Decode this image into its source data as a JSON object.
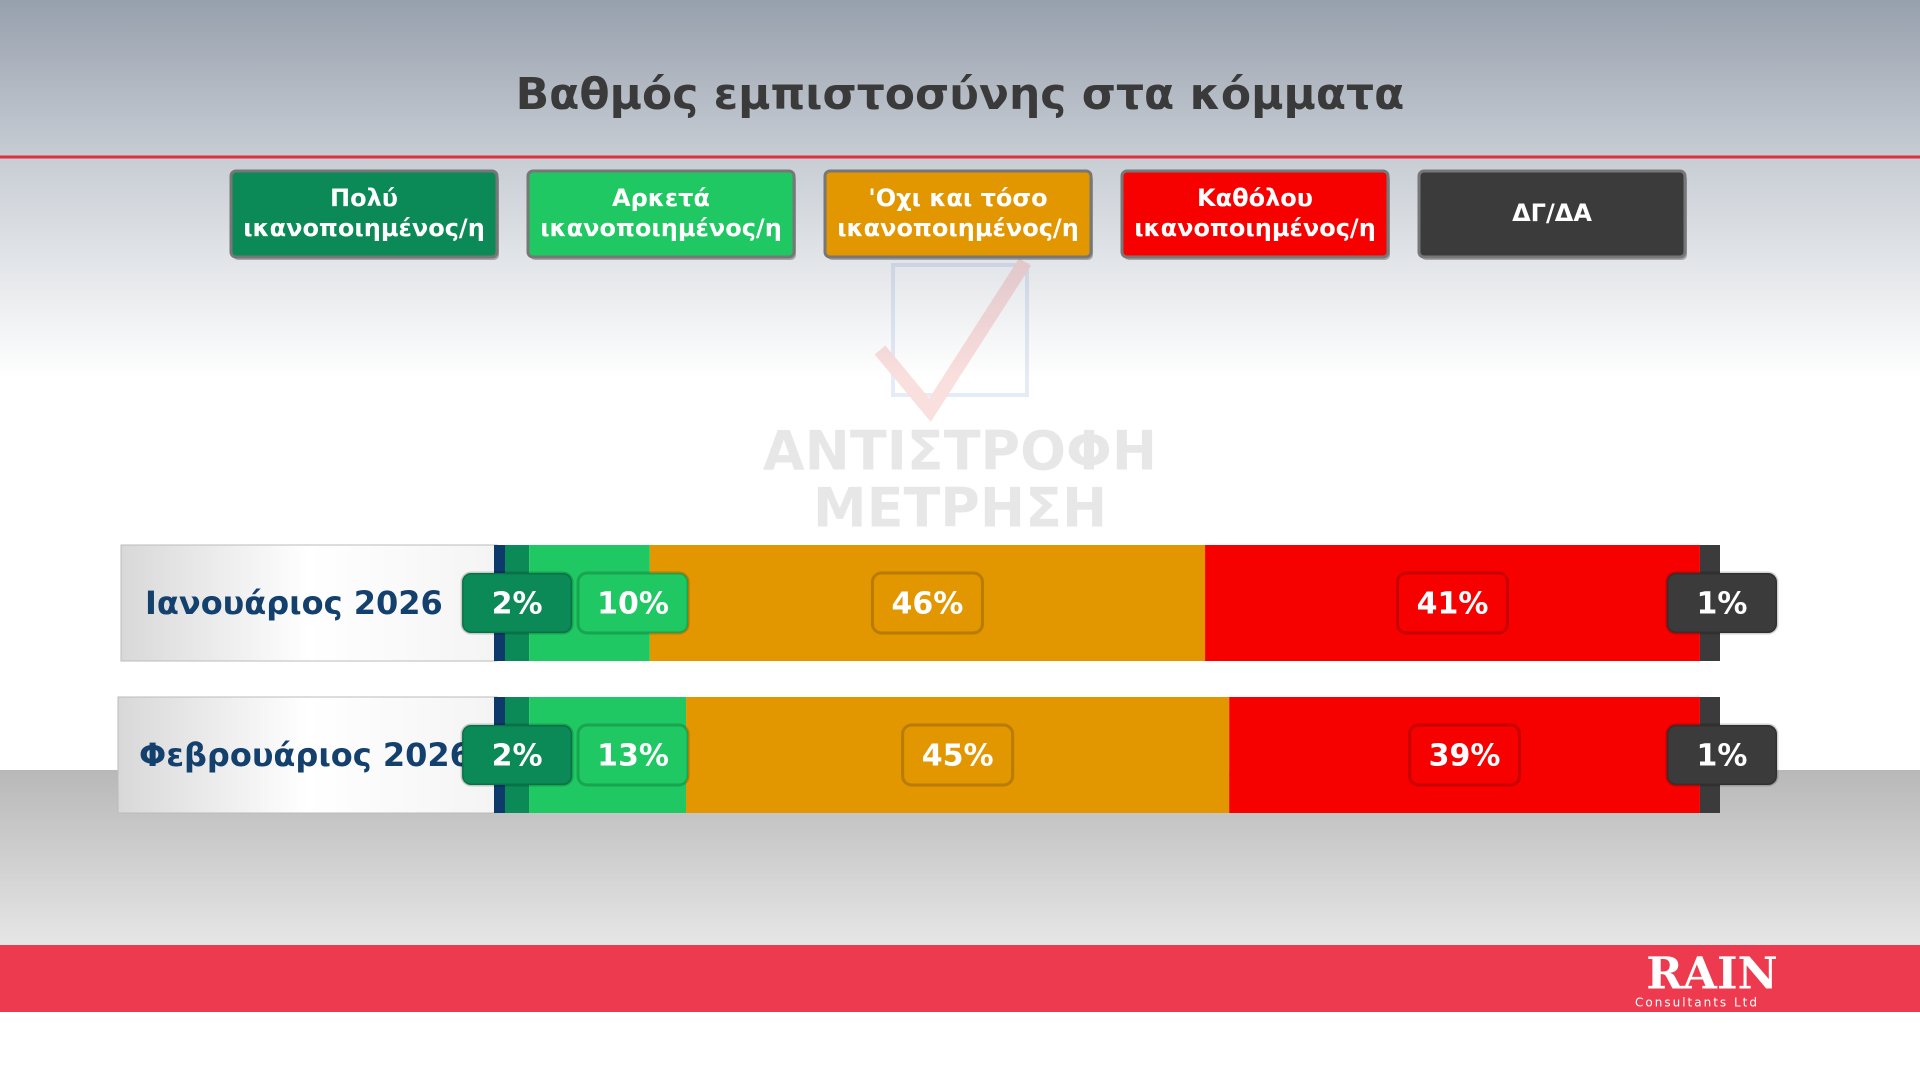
{
  "chart_data": {
    "type": "stacked-bar",
    "title": "Βαθμός εμπιστοσύνης στα κόμματα",
    "categories": [
      "Ιανουάριος 2026",
      "Φεβρουάριος 2026"
    ],
    "series": [
      {
        "name": "Πολύ ικανοποιημένος/η",
        "color": "#0b8a57",
        "values": [
          2,
          2
        ],
        "value_labels": [
          "2%",
          "2%"
        ]
      },
      {
        "name": "Αρκετά ικανοποιημένος/η",
        "color": "#1fc862",
        "values": [
          10,
          13
        ],
        "value_labels": [
          "10%",
          "13%"
        ]
      },
      {
        "name": "'Οχι και τόσο ικανοποιημένος/η",
        "color": "#e29600",
        "values": [
          46,
          45
        ],
        "value_labels": [
          "46%",
          "45%"
        ]
      },
      {
        "name": "Καθόλου ικανοποιημένος/η",
        "color": "#f70000",
        "values": [
          41,
          39
        ],
        "value_labels": [
          "41%",
          "39%"
        ]
      },
      {
        "name": "ΔΓ/ΔΑ",
        "color": "#3b3b3b",
        "values": [
          1,
          1
        ],
        "value_labels": [
          "1%",
          "1%"
        ]
      }
    ]
  },
  "branding": {
    "watermark": [
      "ΑΝΤΙΣΤΡΟΦΗ",
      "ΜΕΤΡΗΣΗ"
    ],
    "logo": "RAIN",
    "logo_subtitle": "Consultants Ltd"
  }
}
